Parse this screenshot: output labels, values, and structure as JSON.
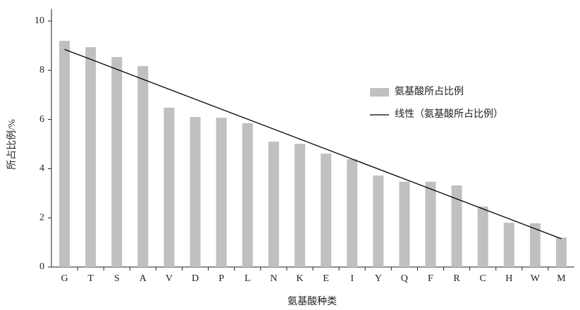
{
  "chart_data": {
    "type": "bar",
    "x_label": "氨基酸种类",
    "y_label": "所占比例/%",
    "categories": [
      "G",
      "T",
      "S",
      "A",
      "V",
      "D",
      "P",
      "L",
      "N",
      "K",
      "E",
      "I",
      "Y",
      "Q",
      "F",
      "R",
      "C",
      "H",
      "W",
      "M"
    ],
    "series": [
      {
        "name": "氨基酸所占比例",
        "color": "#c0c0c0",
        "values": [
          9.2,
          8.94,
          8.54,
          8.17,
          6.48,
          6.1,
          6.07,
          5.85,
          5.1,
          5.01,
          4.61,
          4.38,
          3.72,
          3.47,
          3.47,
          3.32,
          2.46,
          1.8,
          1.78,
          1.2
        ]
      }
    ],
    "trendline": {
      "name": "线性（氨基酸所占比例）",
      "color": "#000000",
      "values": [
        8.85,
        1.15
      ]
    },
    "ylim": [
      0,
      10.5
    ],
    "yticks": [
      0,
      2,
      4,
      6,
      8,
      10
    ],
    "grid": false
  }
}
